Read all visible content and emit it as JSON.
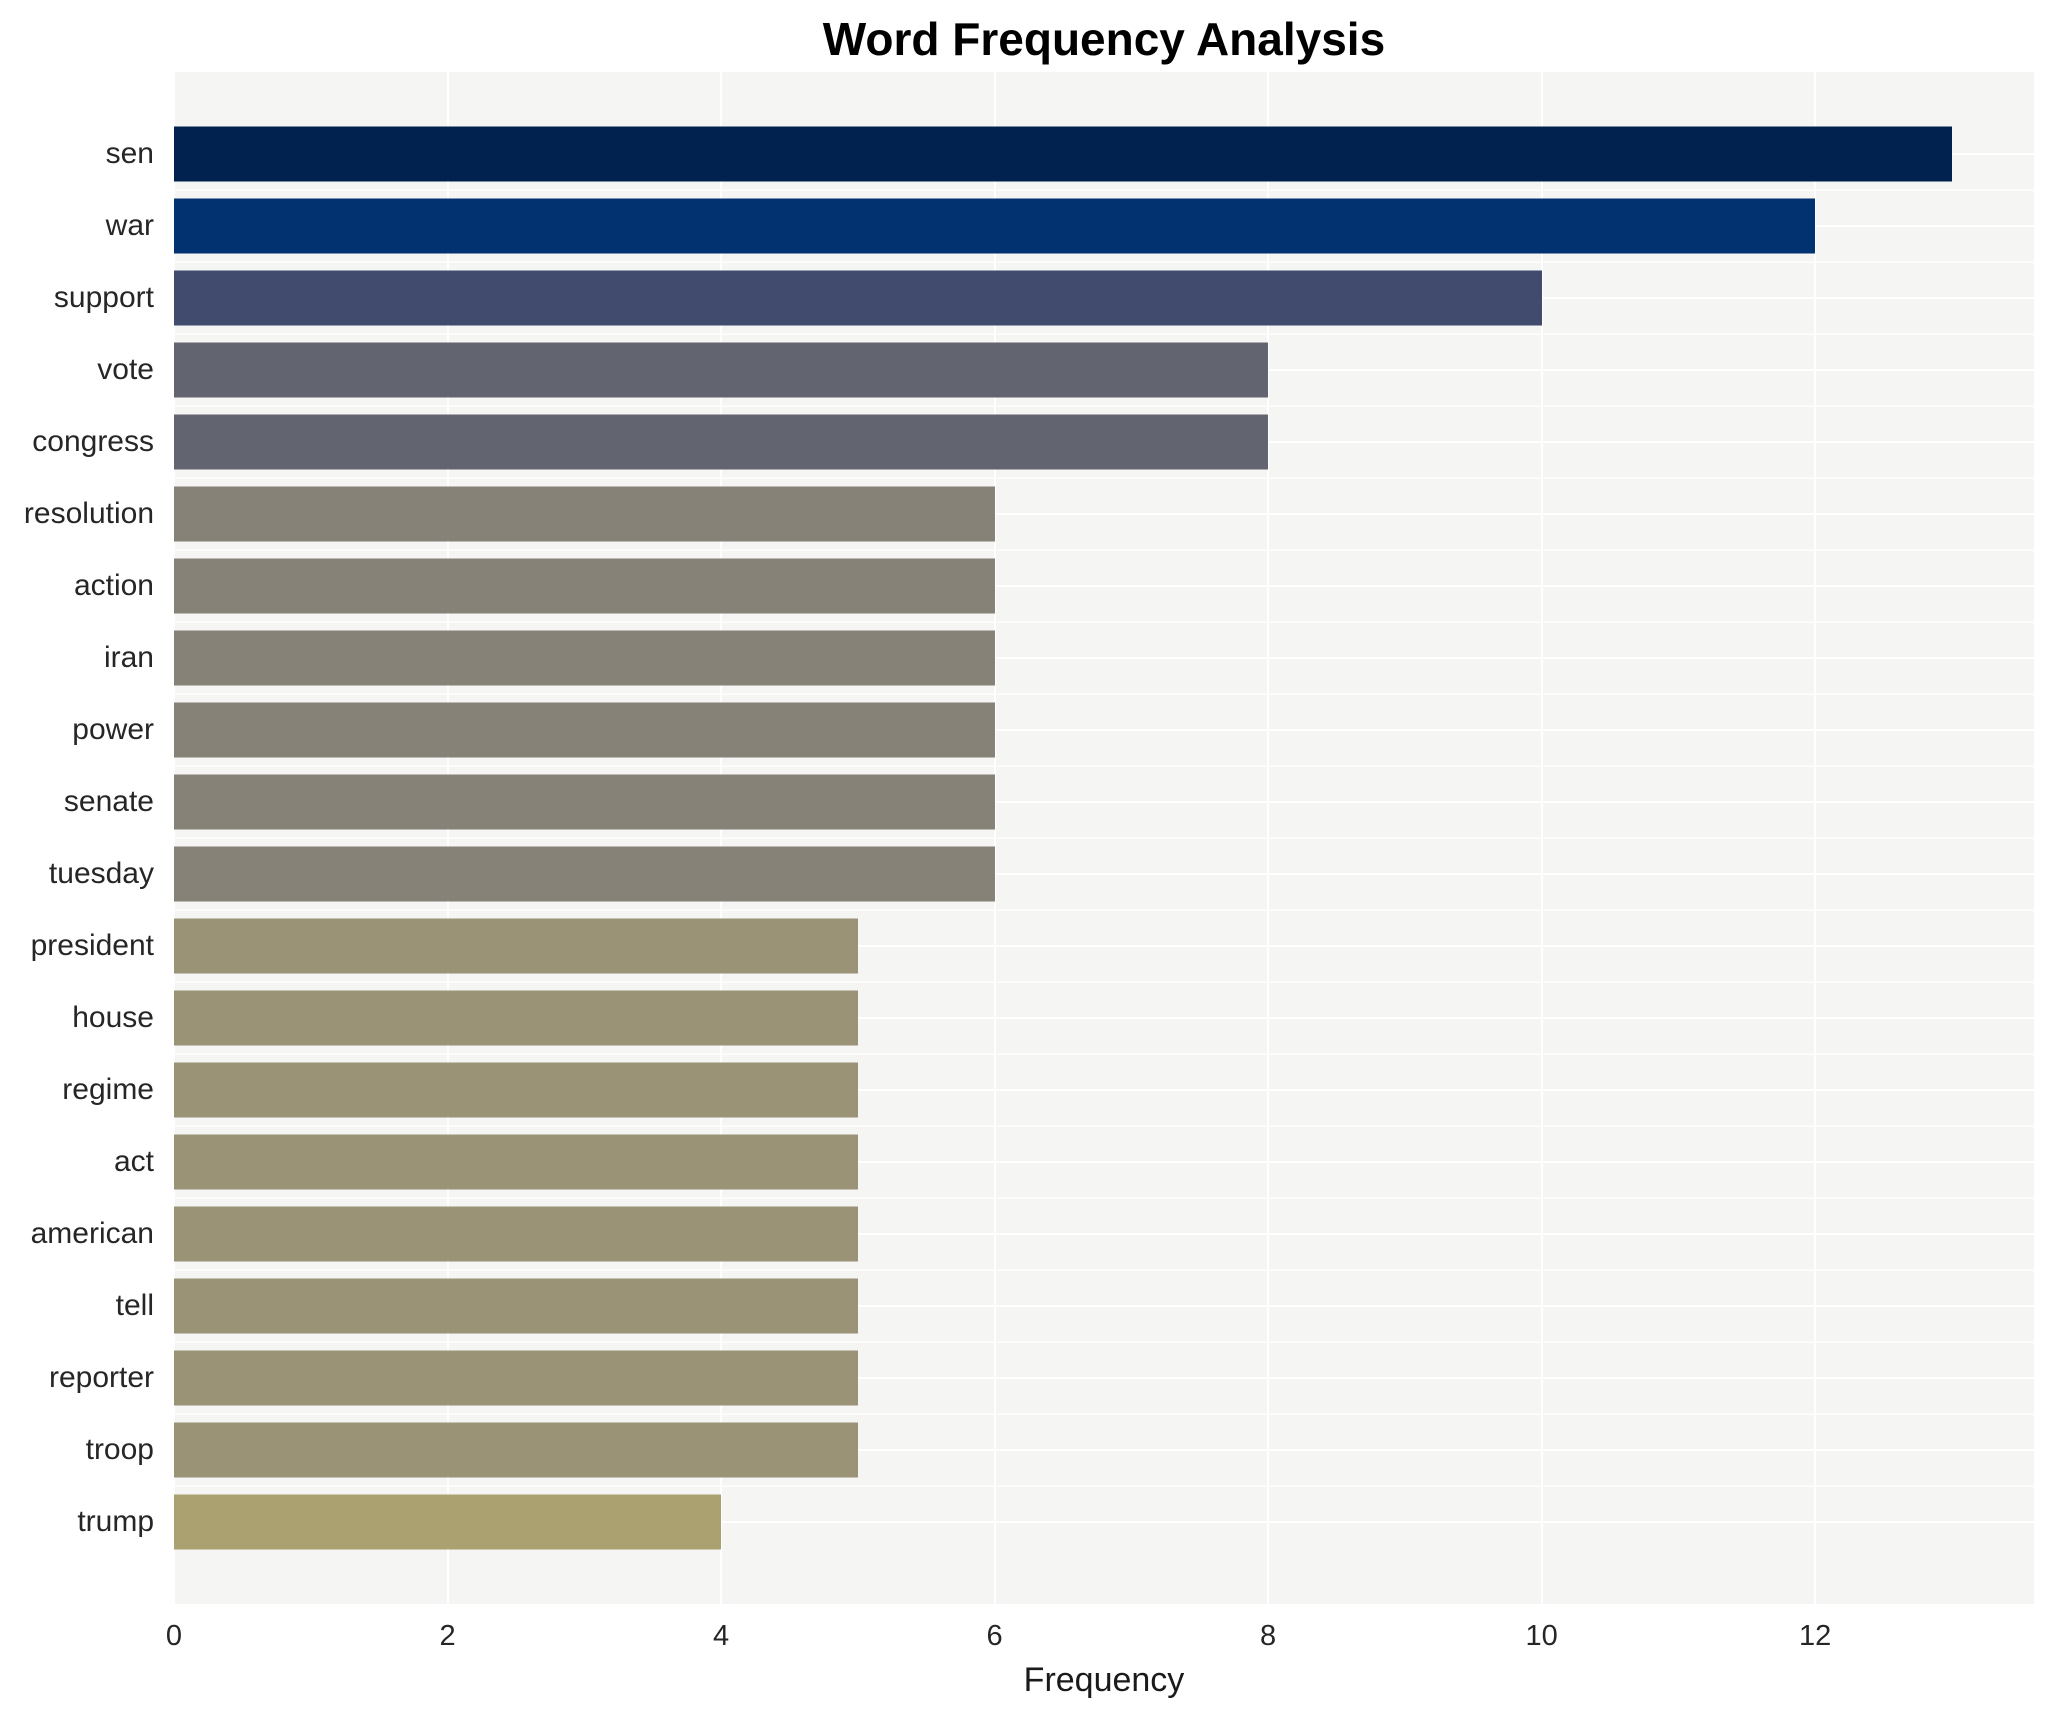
{
  "chart_data": {
    "type": "bar",
    "orientation": "horizontal",
    "title": "Word Frequency Analysis",
    "xlabel": "Frequency",
    "ylabel": "",
    "categories": [
      "sen",
      "war",
      "support",
      "vote",
      "congress",
      "resolution",
      "action",
      "iran",
      "power",
      "senate",
      "tuesday",
      "president",
      "house",
      "regime",
      "act",
      "american",
      "tell",
      "reporter",
      "troop",
      "trump"
    ],
    "values": [
      13,
      12,
      10,
      8,
      8,
      6,
      6,
      6,
      6,
      6,
      6,
      5,
      5,
      5,
      5,
      5,
      5,
      5,
      5,
      4
    ],
    "bar_colors": [
      "#01224e",
      "#033270",
      "#404b6e",
      "#62646f",
      "#62646f",
      "#868277",
      "#868277",
      "#868277",
      "#868277",
      "#868277",
      "#868277",
      "#9a9375",
      "#9a9375",
      "#9a9375",
      "#9a9375",
      "#9a9375",
      "#9a9375",
      "#9a9375",
      "#9a9375",
      "#aba06f"
    ],
    "xticks": [
      0,
      2,
      4,
      6,
      8,
      10,
      12
    ],
    "xlim": [
      0,
      13.6
    ],
    "grid": true,
    "legend_position": "none",
    "plot_bg": "#f5f5f3",
    "grid_color": "#ffffff",
    "text_color": "#262626",
    "title_color": "#000000"
  }
}
